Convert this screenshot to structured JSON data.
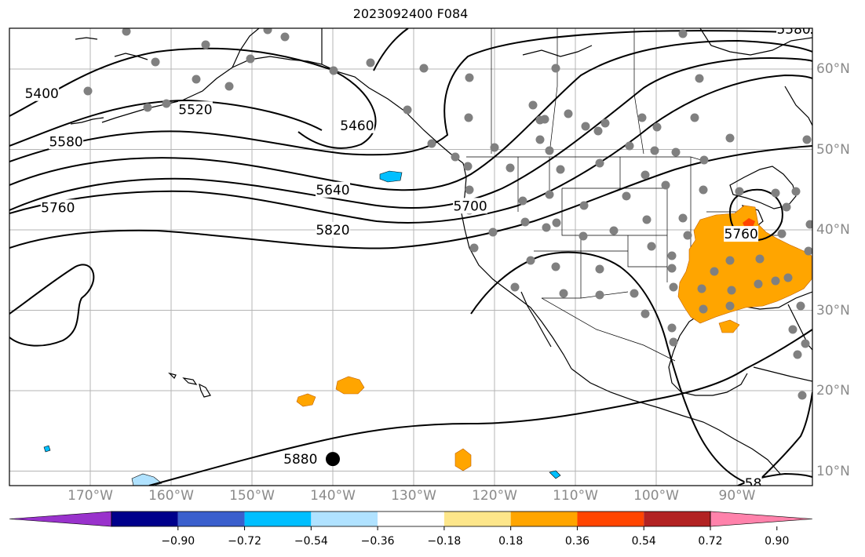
{
  "map": {
    "title": "2023092400 F084",
    "lon_ticks": [
      {
        "lon": -170,
        "label": "170°W"
      },
      {
        "lon": -160,
        "label": "160°W"
      },
      {
        "lon": -150,
        "label": "150°W"
      },
      {
        "lon": -140,
        "label": "140°W"
      },
      {
        "lon": -130,
        "label": "130°W"
      },
      {
        "lon": -120,
        "label": "120°W"
      },
      {
        "lon": -110,
        "label": "110°W"
      },
      {
        "lon": -100,
        "label": "100°W"
      },
      {
        "lon": -90,
        "label": "90°W"
      }
    ],
    "lat_ticks": [
      {
        "lat": 60,
        "label": "60°N"
      },
      {
        "lat": 50,
        "label": "50°N"
      },
      {
        "lat": 40,
        "label": "40°N"
      },
      {
        "lat": 30,
        "label": "30°N"
      },
      {
        "lat": 20,
        "label": "20°N"
      },
      {
        "lat": 10,
        "label": "10°N"
      }
    ],
    "contour_labels": [
      {
        "text": "5400",
        "lon": -176,
        "lat": 57
      },
      {
        "text": "5520",
        "lon": -157,
        "lat": 55
      },
      {
        "text": "5460",
        "lon": -137,
        "lat": 53
      },
      {
        "text": "5580",
        "lon": -173,
        "lat": 51
      },
      {
        "text": "5640",
        "lon": -140,
        "lat": 45
      },
      {
        "text": "5700",
        "lon": -123,
        "lat": 43
      },
      {
        "text": "5760",
        "lon": -174,
        "lat": 42.8
      },
      {
        "text": "5820",
        "lon": -140,
        "lat": 40
      },
      {
        "text": "5760",
        "lon": -89.5,
        "lat": 39.5
      },
      {
        "text": "5880",
        "lon": -144,
        "lat": 11.5
      },
      {
        "text": "5580",
        "lon": -83,
        "lat": 65
      },
      {
        "text": "58",
        "lon": -88,
        "lat": 8.5
      }
    ],
    "colorbar": {
      "colors": [
        "#9932cc",
        "#00008b",
        "#3a5fcd",
        "#00bfff",
        "#b0e2ff",
        "#ffffff",
        "#fde68a",
        "#ffa500",
        "#ff4500",
        "#b22222",
        "#ff82ab"
      ],
      "labels": [
        "−0.90",
        "−0.72",
        "−0.54",
        "−0.36",
        "−0.18",
        "0.18",
        "0.36",
        "0.54",
        "0.72",
        "0.90"
      ]
    },
    "large_dot": {
      "lon": -140,
      "lat": 11.5
    }
  }
}
